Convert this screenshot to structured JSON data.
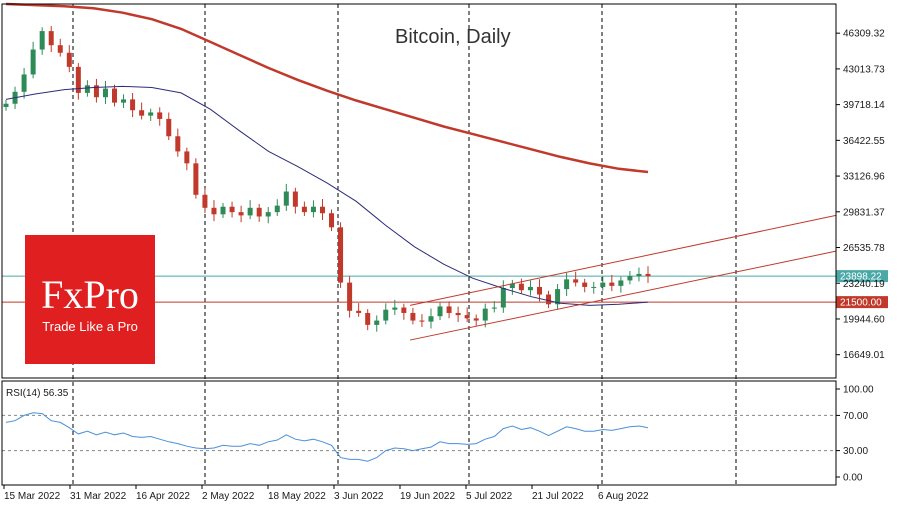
{
  "chart_data": {
    "type": "candlestick",
    "title": "Bitcoin, Daily",
    "price_axis": {
      "ticks": [
        "46309.32",
        "43013.73",
        "39718.14",
        "36422.55",
        "33126.96",
        "29831.37",
        "26535.78",
        "23240.19",
        "19944.60",
        "16649.01"
      ],
      "ylim": [
        14500,
        49000
      ]
    },
    "date_axis": {
      "ticks": [
        "15 Mar 2022",
        "31 Mar 2022",
        "16 Apr 2022",
        "2 May 2022",
        "18 May 2022",
        "3 Jun 2022",
        "19 Jun 2022",
        "5 Jul 2022",
        "21 Jul 2022",
        "6 Aug 2022"
      ]
    },
    "price_tags": [
      {
        "value": "23898.22",
        "color": "#4aa8a8"
      },
      {
        "value": "21500.00",
        "color": "#c0392b"
      }
    ],
    "moving_averages": [
      {
        "period": "long",
        "color": "#c0392b",
        "values": [
          49000,
          48900,
          48800,
          48600,
          48200,
          47600,
          46700,
          45500,
          44300,
          43100,
          42000,
          41000,
          40100,
          39300,
          38500,
          37700,
          37000,
          36300,
          35600,
          34900,
          34300,
          33800,
          33500
        ]
      },
      {
        "period": "short",
        "color": "#2c2c7a",
        "values": [
          40200,
          40700,
          41100,
          41300,
          41400,
          41300,
          40800,
          39300,
          37300,
          35400,
          34000,
          32500,
          30800,
          28600,
          26600,
          25000,
          23700,
          22800,
          22000,
          21400,
          21200,
          21300,
          21500
        ]
      }
    ],
    "close_series": [
      39800,
      40900,
      42500,
      44800,
      46500,
      45200,
      44500,
      43200,
      40800,
      41500,
      40400,
      41200,
      39900,
      40200,
      39200,
      38700,
      39000,
      38400,
      36800,
      35400,
      34300,
      31400,
      30200,
      29600,
      30300,
      29800,
      29500,
      30200,
      29400,
      29800,
      30400,
      31700,
      30300,
      29800,
      30300,
      29700,
      28400,
      23300,
      20700,
      20500,
      19400,
      19800,
      20800,
      21000,
      20500,
      19800,
      19700,
      20200,
      21100,
      20500,
      20300,
      20000,
      19800,
      20900,
      21000,
      22800,
      23200,
      22600,
      22900,
      22200,
      21300,
      22700,
      23600,
      23300,
      22900,
      22900,
      23300,
      23000,
      23500,
      23900,
      24100,
      23900
    ],
    "channel": {
      "color": "#c0392b",
      "lower_start": 18000,
      "lower_end": 26200,
      "upper_start": 21200,
      "upper_end": 29500
    },
    "rsi": {
      "label": "RSI(14) 56.35",
      "ticks": [
        "100.00",
        "70.00",
        "30.00",
        "0.00"
      ],
      "levels": [
        70,
        30
      ],
      "color": "#4a90d9",
      "values": [
        62,
        64,
        70,
        73,
        72,
        64,
        62,
        56,
        49,
        52,
        48,
        51,
        48,
        50,
        46,
        45,
        46,
        43,
        40,
        38,
        35,
        33,
        32,
        33,
        36,
        35,
        35,
        38,
        36,
        40,
        42,
        48,
        43,
        41,
        43,
        40,
        36,
        22,
        20,
        20,
        18,
        22,
        30,
        33,
        32,
        30,
        32,
        34,
        40,
        38,
        38,
        37,
        38,
        43,
        46,
        55,
        58,
        54,
        56,
        52,
        47,
        52,
        57,
        55,
        52,
        52,
        54,
        53,
        55,
        57,
        58,
        56
      ]
    }
  },
  "logo": {
    "brand": "FxPro",
    "slogan": "Trade Like a Pro",
    "color": "#e02020"
  }
}
